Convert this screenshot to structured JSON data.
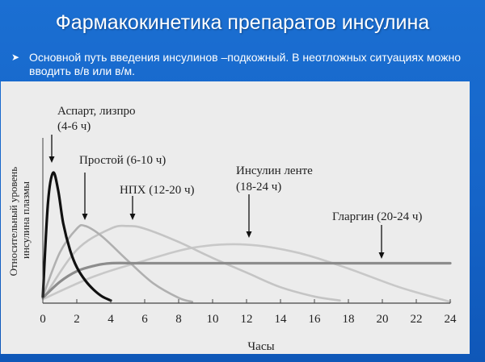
{
  "slide": {
    "title": "Фармакокинетика препаратов инсулина",
    "bullet": "Основной путь введения инсулинов –подкожный. В неотложных ситуациях можно вводить в/в или в/м."
  },
  "chart_data": {
    "type": "line",
    "title": "",
    "xlabel": "Часы",
    "ylabel": "Относительный уровень инсулина плазмы",
    "xlim": [
      0,
      24
    ],
    "ylim": [
      0,
      1
    ],
    "x_ticks": [
      0,
      2,
      4,
      6,
      8,
      10,
      12,
      14,
      16,
      18,
      20,
      22,
      24
    ],
    "grid": false,
    "legend": "none",
    "series": [
      {
        "name": "Аспарт, лизпро",
        "duration_label": "(4-6 ч)",
        "color": "#111111",
        "x": [
          0,
          0.3,
          0.6,
          0.9,
          1.2,
          1.6,
          2.0,
          2.5,
          3.0,
          3.5,
          4.0
        ],
        "y": [
          0.05,
          0.75,
          0.98,
          0.85,
          0.6,
          0.4,
          0.27,
          0.17,
          0.1,
          0.05,
          0.02
        ]
      },
      {
        "name": "Простой",
        "duration_label": "(6-10 ч)",
        "color": "#b0b0b0",
        "x": [
          0,
          1.0,
          2.0,
          2.5,
          3.5,
          5.0,
          6.5,
          8.0,
          8.8
        ],
        "y": [
          0.05,
          0.38,
          0.56,
          0.58,
          0.5,
          0.32,
          0.15,
          0.04,
          0.01
        ]
      },
      {
        "name": "НПХ",
        "duration_label": "(12-20 ч)",
        "color": "#c4c4c4",
        "x": [
          0,
          2.0,
          4.0,
          5.0,
          6.0,
          8.0,
          10.0,
          12.0,
          14.0,
          16.0,
          17.5
        ],
        "y": [
          0.03,
          0.4,
          0.56,
          0.58,
          0.56,
          0.46,
          0.34,
          0.23,
          0.12,
          0.05,
          0.02
        ]
      },
      {
        "name": "Инсулин ленте",
        "duration_label": "(18-24 ч)",
        "color": "#c8c8c8",
        "x": [
          0,
          3.0,
          6.0,
          9.0,
          12.0,
          15.0,
          18.0,
          21.0,
          24.0
        ],
        "y": [
          0.03,
          0.2,
          0.32,
          0.42,
          0.44,
          0.38,
          0.26,
          0.12,
          0.01
        ]
      },
      {
        "name": "Гларгин",
        "duration_label": "(20-24 ч)",
        "color": "#8c8c8c",
        "x": [
          0,
          1.0,
          2.0,
          3.0,
          4.0,
          6.0,
          10.0,
          16.0,
          20.0,
          24.0
        ],
        "y": [
          0.04,
          0.16,
          0.24,
          0.28,
          0.3,
          0.3,
          0.3,
          0.3,
          0.3,
          0.3
        ]
      }
    ]
  }
}
